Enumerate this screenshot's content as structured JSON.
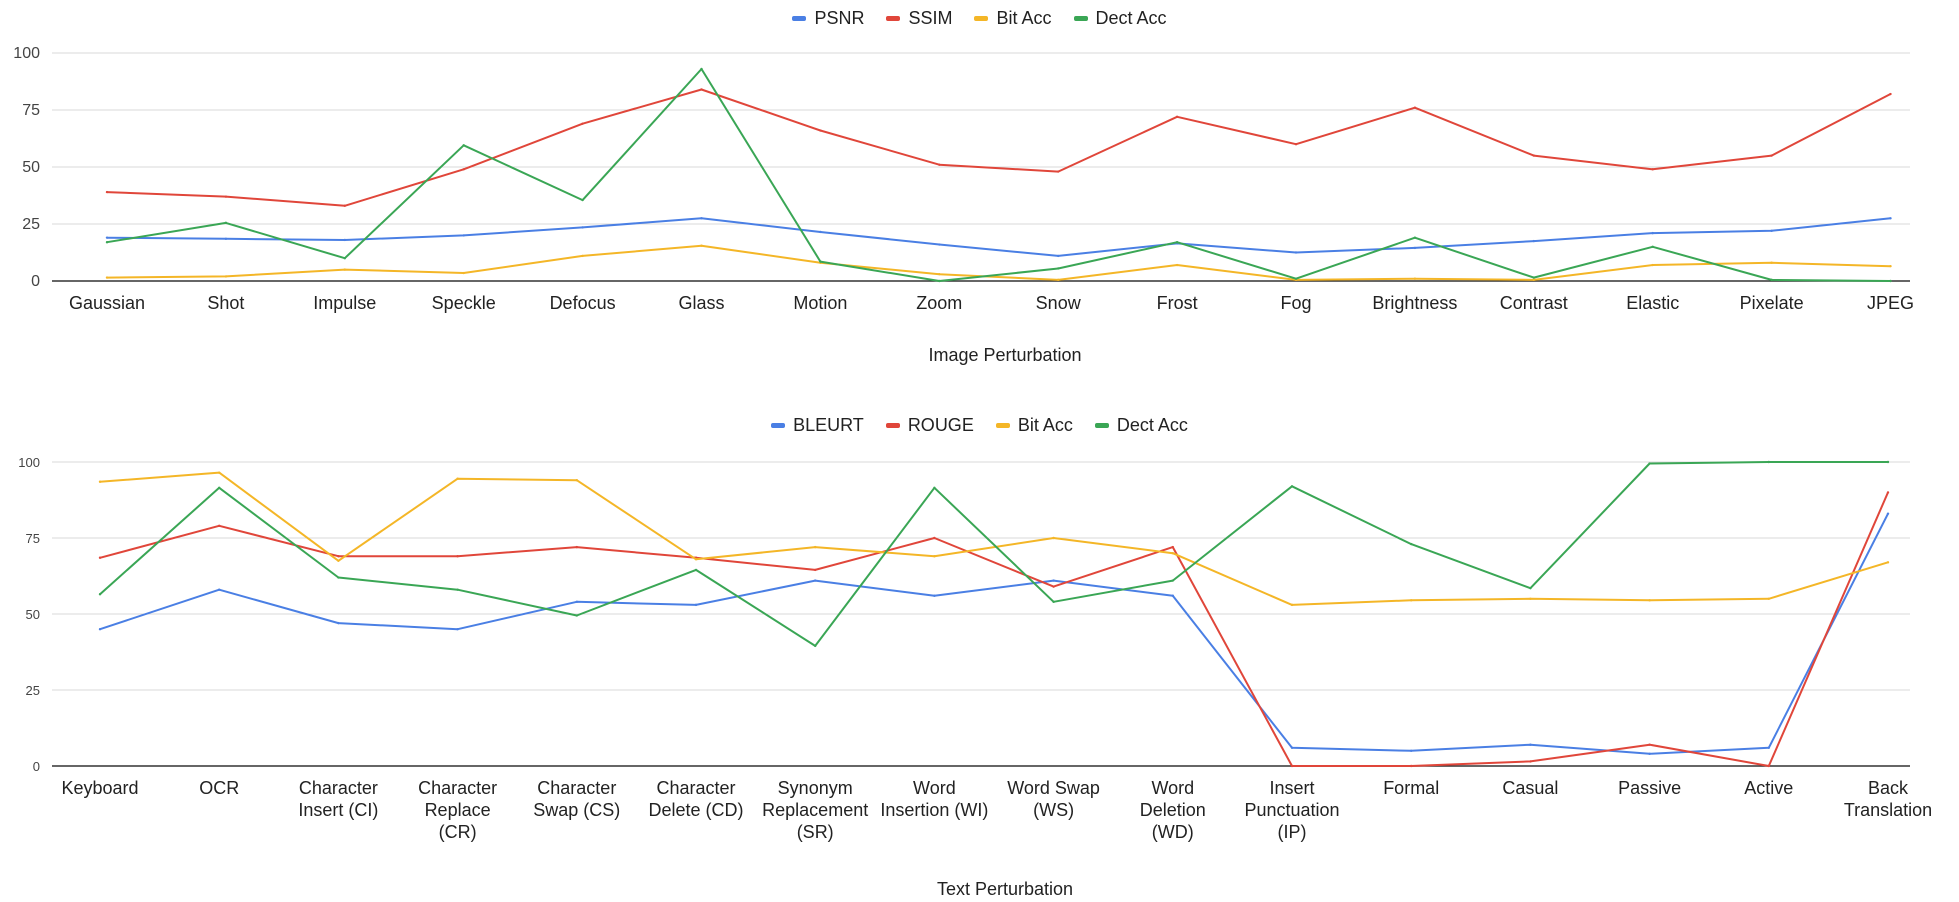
{
  "chart_data": [
    {
      "type": "line",
      "xlabel": "Image Perturbation",
      "ylabel": "",
      "ylim": [
        0,
        100
      ],
      "yticks": [
        "0",
        "25",
        "50",
        "75",
        "100"
      ],
      "grid": true,
      "legend_position": "top",
      "categories": [
        "Gaussian",
        "Shot",
        "Impulse",
        "Speckle",
        "Defocus",
        "Glass",
        "Motion",
        "Zoom",
        "Snow",
        "Frost",
        "Fog",
        "Brightness",
        "Contrast",
        "Elastic",
        "Pixelate",
        "JPEG"
      ],
      "series": [
        {
          "name": "PSNR",
          "color": "#4a7fe4",
          "values": [
            19,
            18.5,
            18,
            20,
            23.5,
            27.5,
            21.5,
            16,
            11,
            16.5,
            12.5,
            14.5,
            17.5,
            21,
            22,
            27.5
          ]
        },
        {
          "name": "SSIM",
          "color": "#e0463a",
          "values": [
            39,
            37,
            33,
            49,
            69,
            84,
            66,
            51,
            48,
            72,
            60,
            76,
            55,
            49,
            55,
            82
          ]
        },
        {
          "name": "Bit Acc",
          "color": "#f4b627",
          "values": [
            1.5,
            2,
            5,
            3.5,
            11,
            15.5,
            8,
            3,
            0.5,
            7,
            0.5,
            1,
            0.5,
            7,
            8,
            6.5
          ]
        },
        {
          "name": "Dect Acc",
          "color": "#3aa655",
          "values": [
            17,
            25.5,
            10,
            59.5,
            35.5,
            93,
            8.5,
            0,
            5.5,
            17,
            1,
            19,
            1.5,
            15,
            0.5,
            0
          ]
        }
      ]
    },
    {
      "type": "line",
      "xlabel": "Text Perturbation",
      "ylabel": "",
      "ylim": [
        0,
        100
      ],
      "yticks": [
        "0",
        "25",
        "50",
        "75",
        "100"
      ],
      "grid": true,
      "legend_position": "top",
      "categories": [
        [
          "Keyboard"
        ],
        [
          "OCR"
        ],
        [
          "Character",
          "Insert (CI)"
        ],
        [
          "Character",
          "Replace",
          "(CR)"
        ],
        [
          "Character",
          "Swap (CS)"
        ],
        [
          "Character",
          "Delete (CD)"
        ],
        [
          "Synonym",
          "Replacement",
          "(SR)"
        ],
        [
          "Word",
          "Insertion (WI)"
        ],
        [
          "Word Swap",
          "(WS)"
        ],
        [
          "Word",
          "Deletion",
          "(WD)"
        ],
        [
          "Insert",
          "Punctuation",
          "(IP)"
        ],
        [
          "Formal"
        ],
        [
          "Casual"
        ],
        [
          "Passive"
        ],
        [
          "Active"
        ],
        [
          "Back",
          "Translation"
        ]
      ],
      "series": [
        {
          "name": "BLEURT",
          "color": "#4a7fe4",
          "values": [
            45,
            58,
            47,
            45,
            54,
            53,
            61,
            56,
            61,
            56,
            6,
            5,
            7,
            4,
            6,
            83
          ]
        },
        {
          "name": "ROUGE",
          "color": "#e0463a",
          "values": [
            68.5,
            79,
            69,
            69,
            72,
            68.5,
            64.5,
            75,
            59,
            72,
            0,
            0,
            1.5,
            7,
            0,
            90
          ]
        },
        {
          "name": "Bit Acc",
          "color": "#f4b627",
          "values": [
            93.5,
            96.5,
            67.5,
            94.5,
            94,
            68,
            72,
            69,
            75,
            70,
            53,
            54.5,
            55,
            54.5,
            55,
            67
          ]
        },
        {
          "name": "Dect Acc",
          "color": "#3aa655",
          "values": [
            56.5,
            91.5,
            62,
            58,
            49.5,
            64.5,
            39.5,
            91.5,
            54,
            61,
            92,
            73,
            58.5,
            99.5,
            100,
            100
          ]
        }
      ]
    }
  ]
}
